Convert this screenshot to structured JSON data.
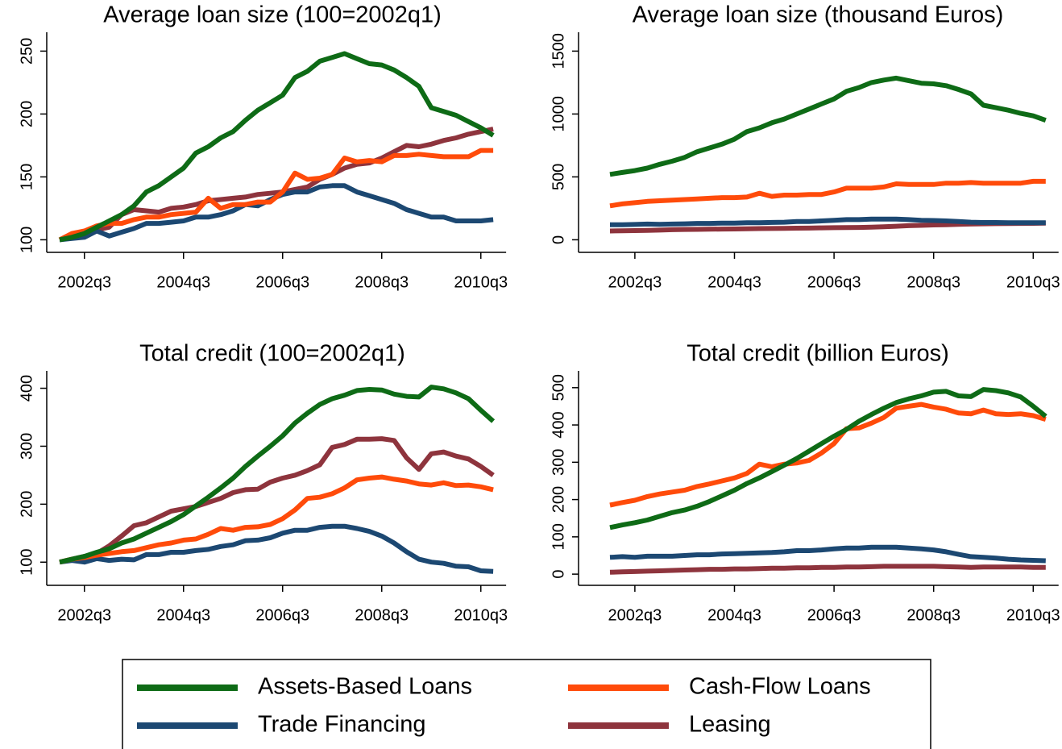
{
  "chart_data": [
    {
      "type": "line",
      "title": "Average loan size (100=2002q1)",
      "categories": [
        null,
        null,
        "2002q3",
        null,
        null,
        null,
        null,
        null,
        null,
        null,
        "2004q3",
        null,
        null,
        null,
        null,
        null,
        null,
        null,
        "2006q3",
        null,
        null,
        null,
        null,
        null,
        null,
        null,
        "2008q3",
        null,
        null,
        null,
        null,
        null,
        null,
        null,
        "2010q3",
        null
      ],
      "ylim": [
        90,
        265
      ],
      "yticks": [
        100,
        150,
        200,
        250
      ],
      "series": [
        {
          "name": "Assets-Based Loans",
          "color": "#0e6b16",
          "values": [
            100,
            102,
            105,
            110,
            115,
            120,
            127,
            138,
            143,
            150,
            157,
            169,
            174,
            181,
            186,
            195,
            203,
            209,
            215,
            229,
            234,
            242,
            245,
            248,
            244,
            240,
            239,
            235,
            229,
            222,
            205,
            202,
            199,
            194,
            189,
            183
          ]
        },
        {
          "name": "Cash-Flow Loans",
          "color": "#ff4b0a",
          "values": [
            100,
            105,
            107,
            111,
            113,
            113,
            116,
            118,
            118,
            120,
            121,
            122,
            133,
            125,
            128,
            128,
            130,
            130,
            138,
            153,
            148,
            149,
            152,
            165,
            162,
            163,
            162,
            167,
            167,
            168,
            167,
            166,
            166,
            166,
            171,
            171
          ]
        },
        {
          "name": "Trade Financing",
          "color": "#1c4872",
          "values": [
            100,
            101,
            102,
            107,
            103,
            106,
            109,
            113,
            113,
            114,
            115,
            118,
            118,
            120,
            123,
            128,
            127,
            132,
            136,
            138,
            138,
            142,
            143,
            143,
            138,
            135,
            132,
            129,
            124,
            121,
            118,
            118,
            115,
            115,
            115,
            116
          ]
        },
        {
          "name": "Leasing",
          "color": "#8e343d",
          "values": [
            100,
            102,
            104,
            108,
            110,
            120,
            124,
            123,
            122,
            125,
            126,
            128,
            131,
            132,
            133,
            134,
            136,
            137,
            138,
            140,
            142,
            148,
            152,
            157,
            160,
            161,
            165,
            170,
            175,
            174,
            176,
            179,
            181,
            184,
            186,
            188
          ]
        }
      ]
    },
    {
      "type": "line",
      "title": "Average loan size (thousand Euros)",
      "categories": [
        null,
        null,
        "2002q3",
        null,
        null,
        null,
        null,
        null,
        null,
        null,
        "2004q3",
        null,
        null,
        null,
        null,
        null,
        null,
        null,
        "2006q3",
        null,
        null,
        null,
        null,
        null,
        null,
        null,
        "2008q3",
        null,
        null,
        null,
        null,
        null,
        null,
        null,
        "2010q3",
        null
      ],
      "ylim": [
        -100,
        1650
      ],
      "yticks": [
        0,
        500,
        1000,
        1500
      ],
      "series": [
        {
          "name": "Assets-Based Loans",
          "color": "#0e6b16",
          "values": [
            520,
            535,
            550,
            570,
            600,
            625,
            655,
            700,
            730,
            760,
            800,
            860,
            890,
            930,
            960,
            1000,
            1040,
            1080,
            1120,
            1180,
            1210,
            1250,
            1270,
            1285,
            1265,
            1245,
            1240,
            1225,
            1195,
            1160,
            1070,
            1050,
            1030,
            1005,
            985,
            950
          ]
        },
        {
          "name": "Cash-Flow Loans",
          "color": "#ff4b0a",
          "values": [
            270,
            285,
            295,
            305,
            310,
            315,
            320,
            325,
            330,
            335,
            335,
            340,
            370,
            345,
            355,
            355,
            360,
            360,
            380,
            410,
            410,
            410,
            420,
            445,
            440,
            440,
            440,
            450,
            450,
            455,
            450,
            450,
            450,
            450,
            465,
            465
          ]
        },
        {
          "name": "Trade Financing",
          "color": "#1c4872",
          "values": [
            120,
            120,
            122,
            125,
            123,
            125,
            127,
            130,
            130,
            132,
            133,
            135,
            135,
            138,
            140,
            145,
            145,
            150,
            155,
            160,
            160,
            165,
            165,
            165,
            160,
            155,
            153,
            150,
            145,
            140,
            137,
            137,
            135,
            135,
            135,
            135
          ]
        },
        {
          "name": "Leasing",
          "color": "#8e343d",
          "values": [
            70,
            72,
            73,
            75,
            77,
            80,
            82,
            83,
            84,
            85,
            86,
            87,
            89,
            90,
            91,
            92,
            93,
            95,
            96,
            97,
            98,
            100,
            103,
            108,
            112,
            115,
            118,
            120,
            123,
            125,
            127,
            128,
            129,
            130,
            131,
            132
          ]
        }
      ]
    },
    {
      "type": "line",
      "title": "Total credit (100=2002q1)",
      "categories": [
        null,
        null,
        "2002q3",
        null,
        null,
        null,
        null,
        null,
        null,
        null,
        "2004q3",
        null,
        null,
        null,
        null,
        null,
        null,
        null,
        "2006q3",
        null,
        null,
        null,
        null,
        null,
        null,
        null,
        "2008q3",
        null,
        null,
        null,
        null,
        null,
        null,
        null,
        "2010q3",
        null
      ],
      "ylim": [
        60,
        430
      ],
      "yticks": [
        100,
        200,
        300,
        400
      ],
      "series": [
        {
          "name": "Assets-Based Loans",
          "color": "#0e6b16",
          "values": [
            100,
            105,
            110,
            117,
            123,
            133,
            140,
            150,
            160,
            170,
            182,
            197,
            212,
            228,
            245,
            265,
            283,
            300,
            318,
            340,
            357,
            372,
            382,
            388,
            396,
            398,
            397,
            390,
            386,
            385,
            402,
            399,
            392,
            382,
            362,
            343
          ]
        },
        {
          "name": "Cash-Flow Loans",
          "color": "#ff4b0a",
          "values": [
            100,
            105,
            108,
            112,
            115,
            118,
            120,
            125,
            130,
            133,
            138,
            140,
            148,
            158,
            155,
            160,
            161,
            165,
            175,
            190,
            210,
            212,
            218,
            228,
            242,
            245,
            247,
            243,
            240,
            235,
            233,
            237,
            232,
            233,
            230,
            225
          ]
        },
        {
          "name": "Trade Financing",
          "color": "#1c4872",
          "values": [
            100,
            103,
            100,
            106,
            103,
            105,
            104,
            113,
            113,
            117,
            117,
            120,
            122,
            127,
            130,
            137,
            138,
            142,
            150,
            155,
            155,
            160,
            162,
            162,
            158,
            153,
            145,
            133,
            118,
            105,
            100,
            98,
            93,
            92,
            85,
            84
          ]
        },
        {
          "name": "Leasing",
          "color": "#8e343d",
          "values": [
            100,
            105,
            110,
            115,
            128,
            145,
            163,
            168,
            178,
            188,
            192,
            196,
            203,
            210,
            220,
            225,
            226,
            238,
            245,
            250,
            258,
            268,
            298,
            303,
            312,
            312,
            313,
            310,
            280,
            260,
            287,
            290,
            283,
            278,
            265,
            250
          ]
        }
      ]
    },
    {
      "type": "line",
      "title": "Total credit (billion Euros)",
      "categories": [
        null,
        null,
        "2002q3",
        null,
        null,
        null,
        null,
        null,
        null,
        null,
        "2004q3",
        null,
        null,
        null,
        null,
        null,
        null,
        null,
        "2006q3",
        null,
        null,
        null,
        null,
        null,
        null,
        null,
        "2008q3",
        null,
        null,
        null,
        null,
        null,
        null,
        null,
        "2010q3",
        null
      ],
      "ylim": [
        -30,
        545
      ],
      "yticks": [
        0,
        100,
        200,
        300,
        400,
        500
      ],
      "series": [
        {
          "name": "Assets-Based Loans",
          "color": "#0e6b16",
          "values": [
            125,
            132,
            138,
            145,
            155,
            165,
            172,
            182,
            195,
            210,
            225,
            243,
            258,
            275,
            292,
            310,
            330,
            350,
            370,
            388,
            410,
            428,
            445,
            460,
            470,
            478,
            488,
            490,
            478,
            476,
            495,
            492,
            486,
            475,
            450,
            423
          ]
        },
        {
          "name": "Cash-Flow Loans",
          "color": "#ff4b0a",
          "values": [
            185,
            192,
            198,
            208,
            215,
            220,
            225,
            235,
            242,
            250,
            258,
            270,
            295,
            288,
            295,
            298,
            305,
            325,
            350,
            390,
            392,
            405,
            420,
            445,
            450,
            455,
            448,
            442,
            432,
            430,
            440,
            430,
            428,
            430,
            425,
            415
          ]
        },
        {
          "name": "Trade Financing",
          "color": "#1c4872",
          "values": [
            45,
            47,
            45,
            48,
            48,
            48,
            50,
            52,
            52,
            54,
            55,
            56,
            57,
            58,
            60,
            63,
            63,
            65,
            68,
            70,
            70,
            72,
            72,
            72,
            70,
            68,
            65,
            60,
            53,
            47,
            45,
            43,
            40,
            38,
            37,
            36
          ]
        },
        {
          "name": "Leasing",
          "color": "#8e343d",
          "values": [
            5,
            6,
            7,
            8,
            9,
            10,
            11,
            12,
            13,
            13,
            14,
            14,
            15,
            16,
            16,
            17,
            17,
            18,
            18,
            19,
            19,
            20,
            21,
            21,
            21,
            21,
            21,
            20,
            19,
            18,
            19,
            19,
            19,
            19,
            18,
            18
          ]
        }
      ]
    }
  ]
}
